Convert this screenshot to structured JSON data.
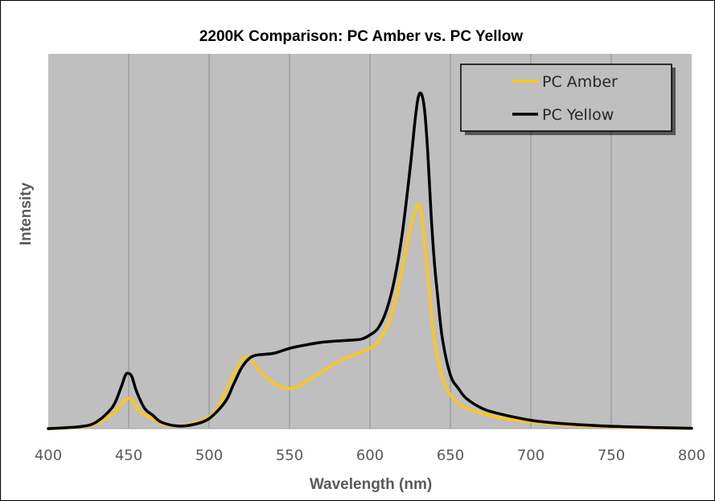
{
  "chart_data": {
    "type": "line",
    "title": "2200K Comparison: PC Amber vs. PC Yellow",
    "xlabel": "Wavelength (nm)",
    "ylabel": "Intensity",
    "xlim": [
      400,
      800
    ],
    "ylim": [
      0,
      1.12
    ],
    "x_ticks": [
      "400",
      "450",
      "500",
      "550",
      "600",
      "650",
      "700",
      "750",
      "800"
    ],
    "grid": "vertical",
    "legend_position": "top-right",
    "plot_background": "#bfbfbf",
    "series": [
      {
        "name": "PC Amber",
        "color": "#ffc61a",
        "x": [
          400,
          420,
          430,
          440,
          445,
          448,
          450,
          452,
          455,
          460,
          465,
          470,
          480,
          490,
          500,
          505,
          510,
          515,
          520,
          523,
          525,
          530,
          535,
          540,
          545,
          550,
          555,
          560,
          570,
          580,
          590,
          600,
          605,
          610,
          615,
          620,
          625,
          628,
          630,
          632,
          635,
          638,
          640,
          645,
          650,
          655,
          660,
          670,
          680,
          700,
          720,
          750,
          780,
          800
        ],
        "y": [
          0,
          0.005,
          0.015,
          0.045,
          0.07,
          0.085,
          0.09,
          0.085,
          0.06,
          0.04,
          0.03,
          0.015,
          0.008,
          0.015,
          0.035,
          0.06,
          0.11,
          0.16,
          0.205,
          0.215,
          0.21,
          0.18,
          0.155,
          0.135,
          0.125,
          0.12,
          0.125,
          0.14,
          0.17,
          0.2,
          0.22,
          0.24,
          0.26,
          0.3,
          0.37,
          0.48,
          0.6,
          0.65,
          0.67,
          0.64,
          0.5,
          0.35,
          0.26,
          0.15,
          0.1,
          0.075,
          0.06,
          0.045,
          0.033,
          0.02,
          0.012,
          0.005,
          0.002,
          0.001
        ]
      },
      {
        "name": "PC Yellow",
        "color": "#000000",
        "x": [
          400,
          420,
          430,
          440,
          445,
          448,
          450,
          452,
          455,
          460,
          465,
          470,
          480,
          490,
          500,
          510,
          515,
          520,
          525,
          530,
          540,
          550,
          560,
          570,
          580,
          590,
          595,
          600,
          605,
          610,
          615,
          620,
          625,
          628,
          630,
          632,
          634,
          636,
          638,
          640,
          642,
          645,
          650,
          655,
          660,
          670,
          680,
          700,
          720,
          750,
          780,
          800
        ],
        "y": [
          0,
          0.006,
          0.02,
          0.065,
          0.12,
          0.16,
          0.165,
          0.155,
          0.11,
          0.06,
          0.04,
          0.02,
          0.008,
          0.012,
          0.03,
          0.08,
          0.13,
          0.18,
          0.21,
          0.22,
          0.225,
          0.24,
          0.25,
          0.258,
          0.262,
          0.265,
          0.268,
          0.28,
          0.3,
          0.35,
          0.44,
          0.58,
          0.78,
          0.92,
          0.99,
          1.0,
          0.95,
          0.82,
          0.64,
          0.5,
          0.4,
          0.27,
          0.16,
          0.12,
          0.09,
          0.06,
          0.045,
          0.025,
          0.015,
          0.007,
          0.003,
          0.001
        ]
      }
    ]
  }
}
